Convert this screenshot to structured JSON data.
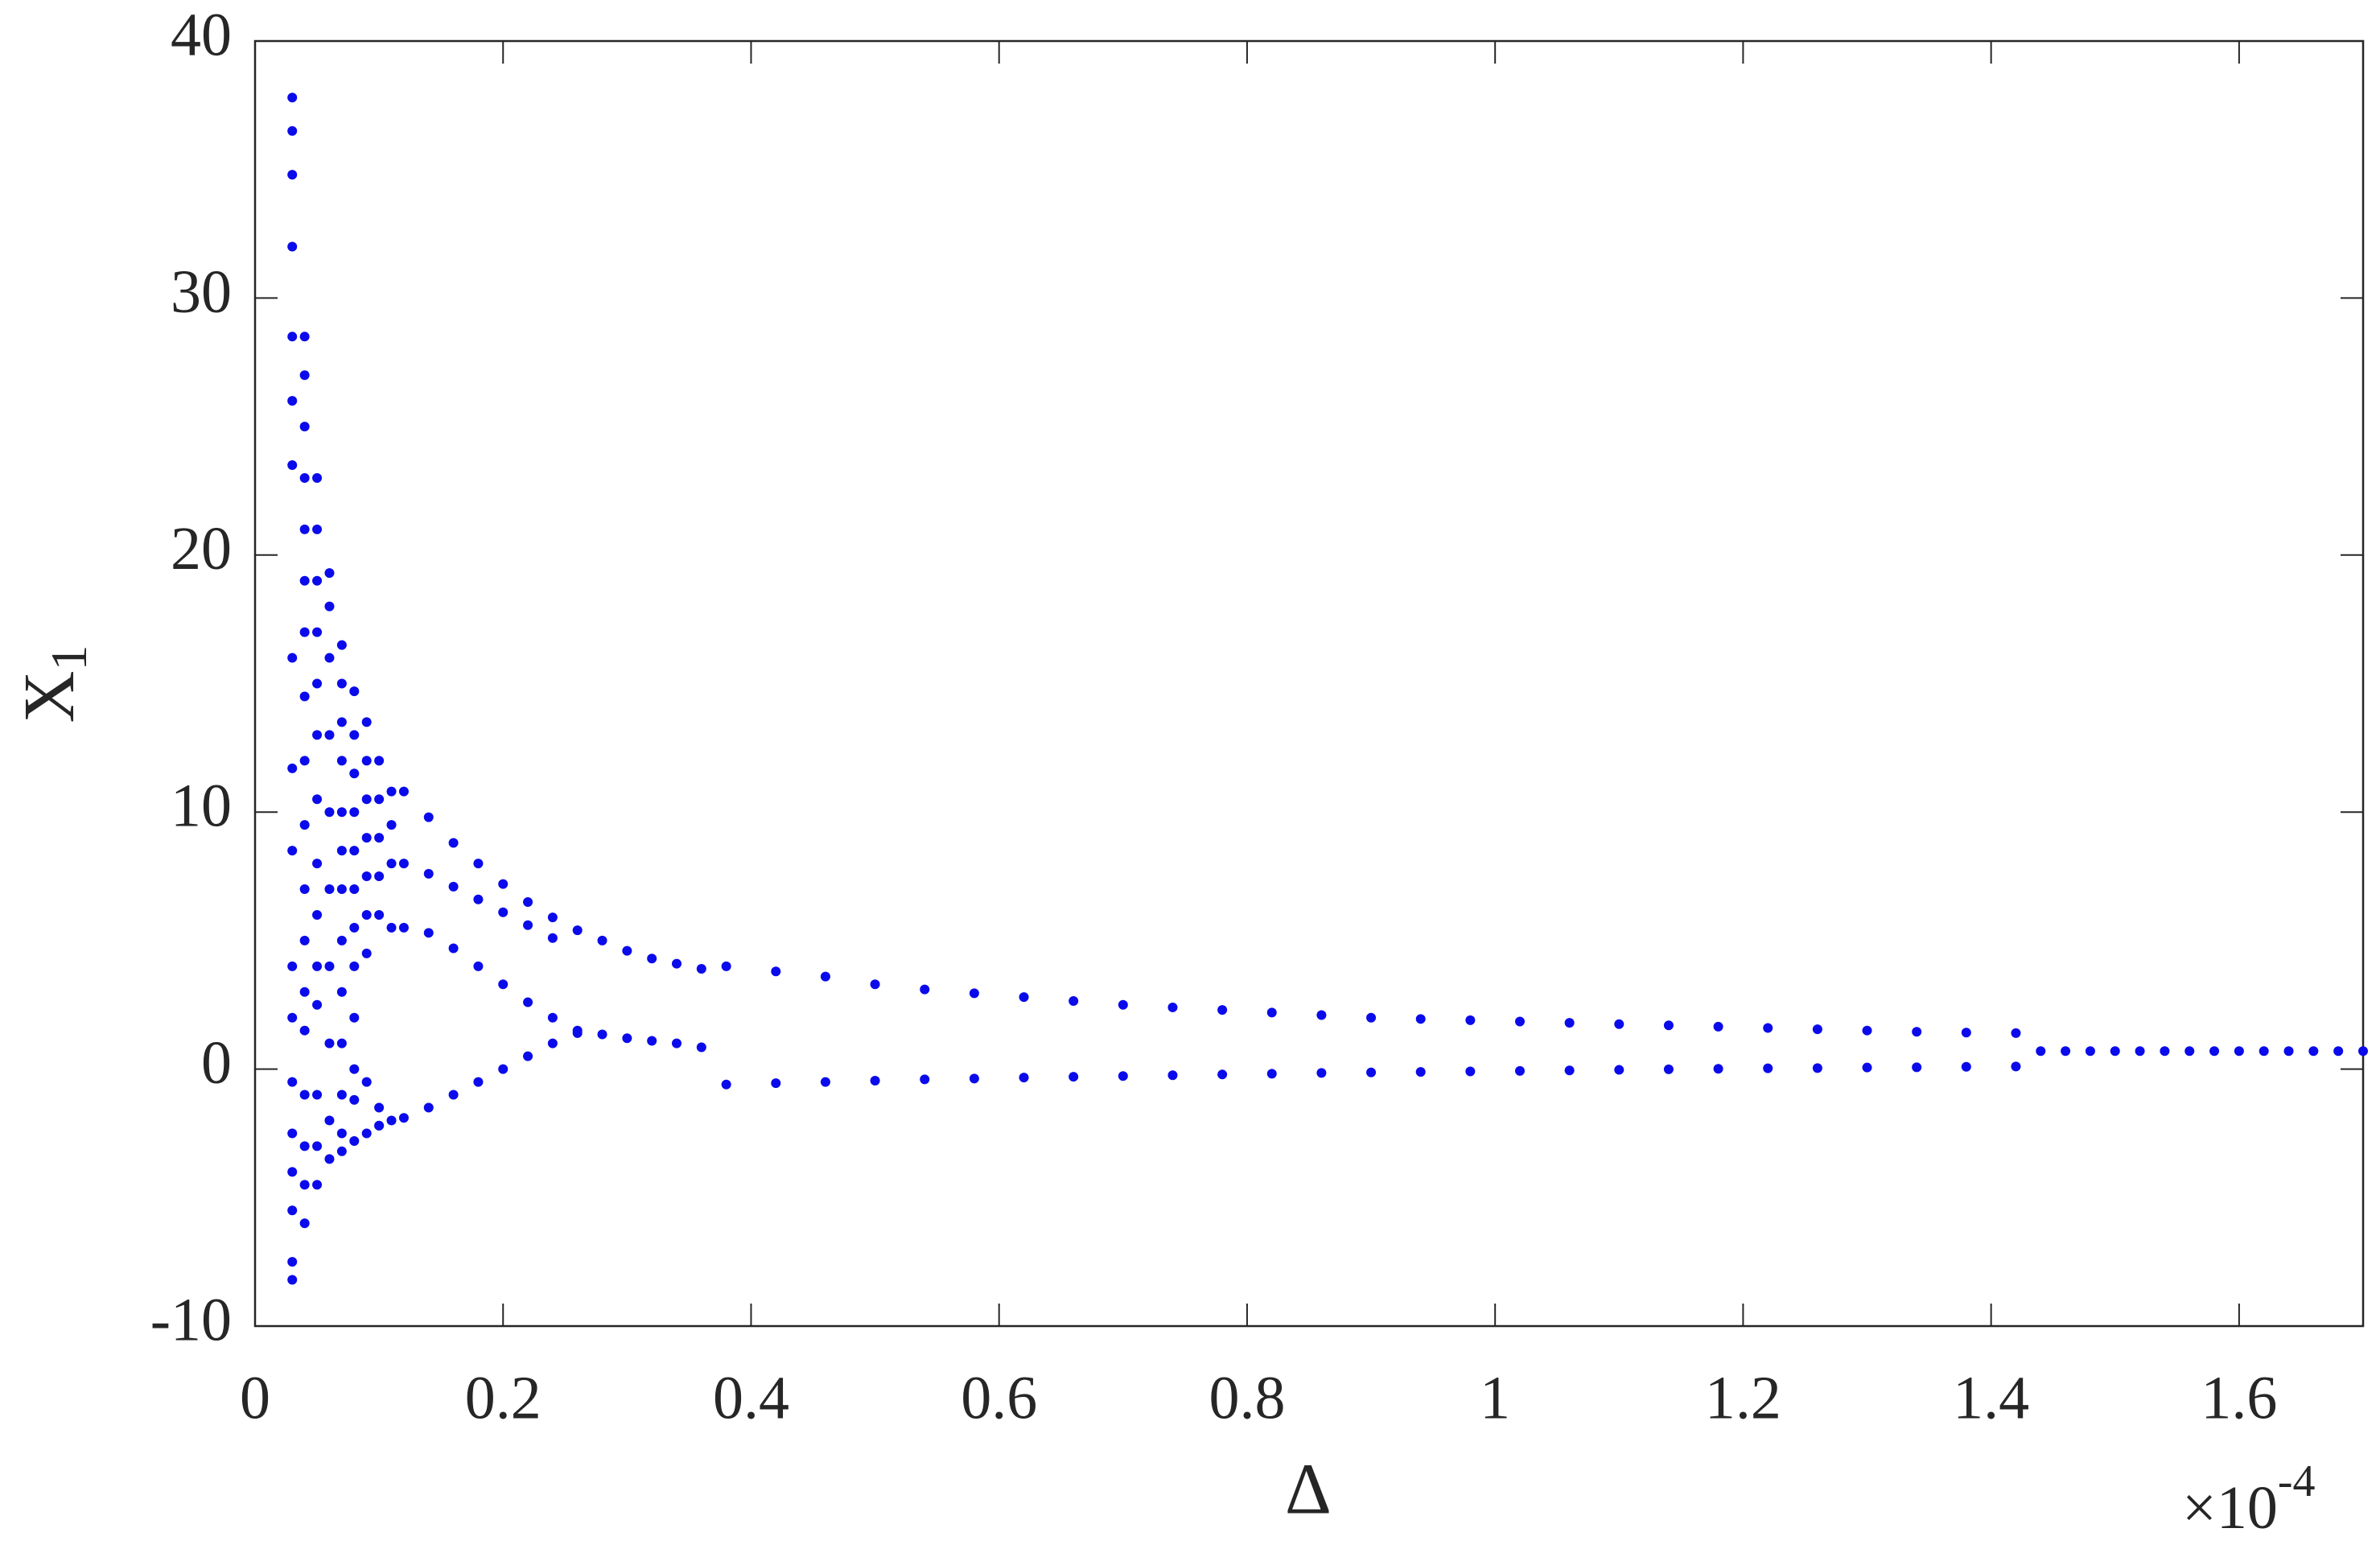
{
  "chart_data": {
    "type": "scatter",
    "xlabel": "Δ",
    "ylabel": "X",
    "ylabel_subscript": "1",
    "x_multiplier": "×10",
    "x_multiplier_exponent": "-4",
    "color": "#0a0aeb",
    "xlim": [
      0,
      1.7
    ],
    "ylim": [
      -10,
      40
    ],
    "xticks": [
      0,
      0.2,
      0.4,
      0.6,
      0.8,
      1,
      1.2,
      1.4,
      1.6
    ],
    "yticks": [
      -10,
      0,
      10,
      20,
      30,
      40
    ],
    "grid": false,
    "x": [
      0.03,
      0.03,
      0.03,
      0.03,
      0.03,
      0.03,
      0.03,
      0.03,
      0.03,
      0.03,
      0.03,
      0.03,
      0.03,
      0.03,
      0.03,
      0.03,
      0.03,
      0.03,
      0.04,
      0.04,
      0.04,
      0.04,
      0.04,
      0.04,
      0.04,
      0.04,
      0.04,
      0.04,
      0.04,
      0.04,
      0.04,
      0.04,
      0.04,
      0.04,
      0.04,
      0.04,
      0.05,
      0.05,
      0.05,
      0.05,
      0.05,
      0.05,
      0.05,
      0.05,
      0.05,
      0.05,
      0.05,
      0.05,
      0.05,
      0.05,
      0.06,
      0.06,
      0.06,
      0.06,
      0.06,
      0.06,
      0.06,
      0.06,
      0.06,
      0.06,
      0.07,
      0.07,
      0.07,
      0.07,
      0.07,
      0.07,
      0.07,
      0.07,
      0.07,
      0.07,
      0.07,
      0.07,
      0.07,
      0.08,
      0.08,
      0.08,
      0.08,
      0.08,
      0.08,
      0.08,
      0.08,
      0.08,
      0.08,
      0.08,
      0.08,
      0.09,
      0.09,
      0.09,
      0.09,
      0.09,
      0.09,
      0.09,
      0.09,
      0.09,
      0.1,
      0.1,
      0.1,
      0.1,
      0.1,
      0.1,
      0.1,
      0.11,
      0.11,
      0.11,
      0.11,
      0.11,
      0.12,
      0.14,
      0.16,
      0.18,
      0.2,
      0.22,
      0.24,
      0.26,
      0.28,
      0.3,
      0.32,
      0.34,
      0.36,
      0.12,
      0.14,
      0.16,
      0.18,
      0.2,
      0.22,
      0.24,
      0.12,
      0.14,
      0.16,
      0.18,
      0.2,
      0.22,
      0.24,
      0.26,
      0.28,
      0.3,
      0.32,
      0.34,
      0.36,
      0.1,
      0.12,
      0.14,
      0.16,
      0.18,
      0.2,
      0.22,
      0.24,
      0.26,
      0.38,
      0.42,
      0.46,
      0.5,
      0.54,
      0.58,
      0.62,
      0.66,
      0.7,
      0.74,
      0.78,
      0.82,
      0.86,
      0.9,
      0.94,
      0.98,
      1.02,
      1.06,
      1.1,
      1.14,
      1.18,
      1.22,
      1.26,
      1.3,
      1.34,
      1.38,
      1.42,
      0.38,
      0.42,
      0.46,
      0.5,
      0.54,
      0.58,
      0.62,
      0.66,
      0.7,
      0.74,
      0.78,
      0.82,
      0.86,
      0.9,
      0.94,
      0.98,
      1.02,
      1.06,
      1.1,
      1.14,
      1.18,
      1.22,
      1.26,
      1.3,
      1.34,
      1.38,
      1.42,
      1.44,
      1.46,
      1.48,
      1.5,
      1.52,
      1.54,
      1.56,
      1.58,
      1.6,
      1.62,
      1.64,
      1.66,
      1.68,
      1.7
    ],
    "values": [
      37.8,
      36.5,
      34.8,
      32,
      28.5,
      26,
      23.5,
      16,
      11.7,
      8.5,
      4,
      2,
      -0.5,
      -2.5,
      -4,
      -5.5,
      -7.5,
      -8.2,
      28.5,
      27,
      25,
      23,
      21,
      19,
      17,
      14.5,
      12,
      9.5,
      7,
      5,
      3,
      1.5,
      -1,
      -3,
      -4.5,
      -6,
      23,
      21,
      19,
      17,
      15,
      13,
      10.5,
      8,
      6,
      4,
      2.5,
      -1,
      -3,
      -4.5,
      19.3,
      18,
      16,
      13,
      10,
      7,
      4,
      1,
      -2,
      -3.5,
      16.5,
      15,
      13.5,
      12,
      10,
      8.5,
      7,
      5,
      3,
      1,
      -1,
      -2.5,
      -3.2,
      14.7,
      13,
      11.5,
      10,
      8.5,
      7,
      5.5,
      4,
      2,
      0,
      -1.2,
      -2.8,
      13.5,
      12,
      10.5,
      9,
      7.5,
      6,
      4.5,
      -0.5,
      -2.5,
      12,
      10.5,
      9,
      7.5,
      6,
      -1.5,
      -2.2,
      10.8,
      9.5,
      8,
      5.5,
      -2,
      10.8,
      9.8,
      8.8,
      8,
      7.2,
      6.5,
      5.9,
      5.4,
      5,
      4.6,
      4.3,
      4.1,
      3.9,
      8,
      7.6,
      7.1,
      6.6,
      6.1,
      5.6,
      5.1,
      5.5,
      5.3,
      4.7,
      4,
      3.3,
      2.6,
      2,
      1.5,
      1.35,
      1.2,
      1.1,
      1,
      0.85,
      -2.2,
      -1.9,
      -1.5,
      -1,
      -0.5,
      0,
      0.5,
      1,
      1.4,
      4,
      3.8,
      3.6,
      3.3,
      3.1,
      2.95,
      2.8,
      2.65,
      2.5,
      2.4,
      2.3,
      2.2,
      2.1,
      2,
      1.95,
      1.9,
      1.85,
      1.8,
      1.75,
      1.7,
      1.65,
      1.6,
      1.55,
      1.5,
      1.45,
      1.42,
      1.4,
      -0.6,
      -0.55,
      -0.5,
      -0.45,
      -0.4,
      -0.37,
      -0.33,
      -0.3,
      -0.27,
      -0.24,
      -0.21,
      -0.18,
      -0.15,
      -0.13,
      -0.11,
      -0.09,
      -0.07,
      -0.05,
      -0.03,
      -0.01,
      0.01,
      0.03,
      0.04,
      0.06,
      0.07,
      0.09,
      0.1,
      0.7,
      0.7,
      0.7,
      0.7,
      0.7,
      0.7,
      0.7,
      0.7,
      0.7,
      0.7,
      0.7,
      0.7,
      0.7,
      0.7
    ]
  }
}
